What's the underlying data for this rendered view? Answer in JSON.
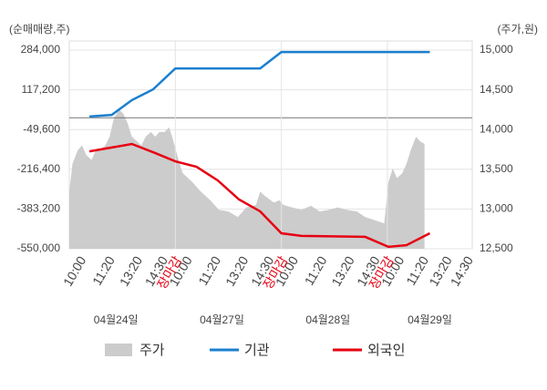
{
  "chart_data": {
    "type": "line",
    "y_axis_label": "(순매매량,주)",
    "y2_axis_label": "(주가,원)",
    "xlim": [
      0,
      3.8
    ],
    "xticks": [
      {
        "value": 0.1,
        "label": "10:00"
      },
      {
        "value": 0.37,
        "label": "11:20"
      },
      {
        "value": 0.63,
        "label": "13:20"
      },
      {
        "value": 0.87,
        "label": "14:30"
      },
      {
        "value": 1.1,
        "label": "10:00"
      },
      {
        "value": 1.37,
        "label": "11:20"
      },
      {
        "value": 1.63,
        "label": "13:20"
      },
      {
        "value": 1.87,
        "label": "14:30"
      },
      {
        "value": 2.1,
        "label": "10:00"
      },
      {
        "value": 2.37,
        "label": "11:20"
      },
      {
        "value": 2.63,
        "label": "13:20"
      },
      {
        "value": 2.87,
        "label": "14:30"
      },
      {
        "value": 3.1,
        "label": "10:00"
      },
      {
        "value": 3.33,
        "label": "11:20"
      },
      {
        "value": 3.55,
        "label": "13:20"
      },
      {
        "value": 3.75,
        "label": "14:30"
      }
    ],
    "session_close_ticks": [
      {
        "value": 1,
        "label": "장마감"
      },
      {
        "value": 2,
        "label": "장마감"
      },
      {
        "value": 3,
        "label": "장마감"
      }
    ],
    "session_close_color": "#e60012",
    "dates": [
      "04월24일",
      "04월27일",
      "04월28일",
      "04월29일"
    ],
    "ylim": [
      -550000,
      284000
    ],
    "yticks": [
      {
        "value": 284000,
        "label": "284,000"
      },
      {
        "value": 117200,
        "label": "117,200"
      },
      {
        "value": -49600,
        "label": "-49,600"
      },
      {
        "value": -216400,
        "label": "-216,400"
      },
      {
        "value": -383200,
        "label": "-383,200"
      },
      {
        "value": -550000,
        "label": "-550,000"
      }
    ],
    "y2lim": [
      12500,
      15000
    ],
    "y2ticks": [
      {
        "value": 15000,
        "label": "15,000"
      },
      {
        "value": 14500,
        "label": "14,500"
      },
      {
        "value": 14000,
        "label": "14,000"
      },
      {
        "value": 13500,
        "label": "13,500"
      },
      {
        "value": 13000,
        "label": "13,000"
      },
      {
        "value": 12500,
        "label": "12,500"
      }
    ],
    "grid": true,
    "series": [
      {
        "name": "주가",
        "type": "area",
        "axis": "y2",
        "color": "#cccccc",
        "x": [
          0,
          0.03,
          0.08,
          0.12,
          0.16,
          0.21,
          0.25,
          0.29,
          0.34,
          0.38,
          0.42,
          0.47,
          0.51,
          0.55,
          0.59,
          0.64,
          0.68,
          0.72,
          0.77,
          0.81,
          0.85,
          0.9,
          0.94,
          0.97,
          1.03,
          1.07,
          1.16,
          1.24,
          1.33,
          1.41,
          1.5,
          1.59,
          1.67,
          1.76,
          1.8,
          1.84,
          1.93,
          1.98,
          2.02,
          2.1,
          2.19,
          2.28,
          2.36,
          2.45,
          2.53,
          2.62,
          2.71,
          2.79,
          2.88,
          2.97,
          3.01,
          3.05,
          3.09,
          3.14,
          3.18,
          3.22,
          3.27,
          3.31,
          3.35
        ],
        "values": [
          13220,
          13570,
          13740,
          13800,
          13680,
          13620,
          13740,
          13740,
          13800,
          13910,
          14140,
          14250,
          14200,
          14080,
          13910,
          13850,
          13800,
          13910,
          13970,
          13910,
          13970,
          13970,
          14030,
          13910,
          13620,
          13450,
          13340,
          13220,
          13110,
          12990,
          12970,
          12900,
          13020,
          13050,
          13220,
          13170,
          13080,
          13110,
          13050,
          13020,
          12990,
          13040,
          12970,
          12990,
          13020,
          12990,
          12970,
          12900,
          12860,
          12820,
          13340,
          13510,
          13390,
          13450,
          13570,
          13740,
          13910,
          13850,
          13820
        ]
      },
      {
        "name": "기관",
        "type": "line",
        "color": "#1a7fcf",
        "x": [
          0.19,
          0.4,
          0.59,
          0.79,
          1.0,
          1.8,
          2.0,
          3.4
        ],
        "values": [
          5000,
          12000,
          74000,
          119000,
          207000,
          207000,
          276000,
          276000
        ]
      },
      {
        "name": "외국인",
        "type": "line",
        "color": "#e60012",
        "x": [
          0.19,
          0.4,
          0.59,
          0.81,
          1.0,
          1.2,
          1.4,
          1.6,
          1.8,
          2.0,
          2.19,
          2.79,
          3.01,
          3.18,
          3.4
        ],
        "values": [
          -141000,
          -125000,
          -110000,
          -148000,
          -183000,
          -206000,
          -263000,
          -343000,
          -393000,
          -485000,
          -496000,
          -500000,
          -542000,
          -535000,
          -485000
        ]
      }
    ]
  }
}
